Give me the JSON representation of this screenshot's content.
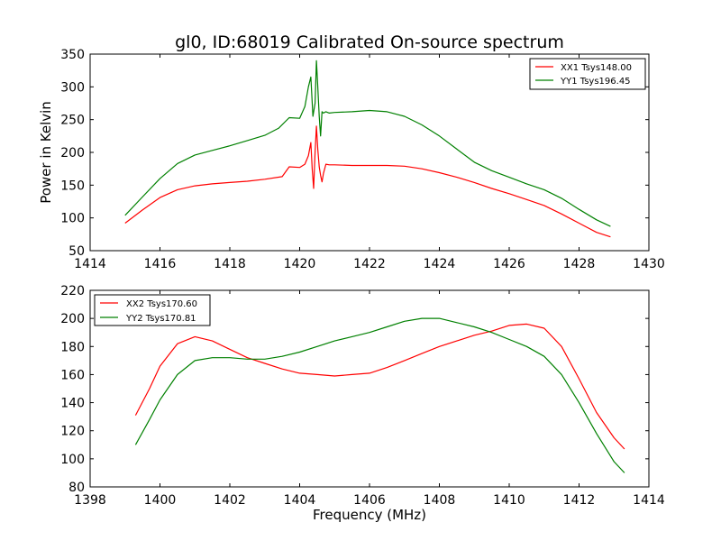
{
  "chart_data": [
    {
      "type": "line",
      "title": "gl0, ID:68019 Calibrated On-source spectrum",
      "xlabel": "",
      "ylabel": "Power in Kelvin",
      "xlim": [
        1414,
        1430
      ],
      "ylim": [
        50,
        350
      ],
      "xticks": [
        1414,
        1416,
        1418,
        1420,
        1422,
        1424,
        1426,
        1428,
        1430
      ],
      "yticks": [
        50,
        100,
        150,
        200,
        250,
        300,
        350
      ],
      "grid": false,
      "legend_position": "top-right",
      "series": [
        {
          "name": "XX1 Tsys148.00",
          "color": "#ff0000",
          "x": [
            1415.0,
            1415.5,
            1416.0,
            1416.5,
            1417.0,
            1417.5,
            1418.0,
            1418.5,
            1419.0,
            1419.5,
            1419.7,
            1420.0,
            1420.15,
            1420.25,
            1420.32,
            1420.36,
            1420.4,
            1420.44,
            1420.48,
            1420.52,
            1420.56,
            1420.6,
            1420.64,
            1420.68,
            1420.75,
            1420.85,
            1421.0,
            1421.5,
            1422.0,
            1422.5,
            1423.0,
            1423.5,
            1424.0,
            1424.5,
            1425.0,
            1425.5,
            1426.0,
            1426.5,
            1427.0,
            1427.5,
            1428.0,
            1428.5,
            1428.9
          ],
          "y": [
            92,
            112,
            131,
            143,
            149,
            152,
            154,
            156,
            159,
            163,
            178,
            177,
            182,
            195,
            215,
            175,
            145,
            200,
            240,
            205,
            178,
            165,
            155,
            168,
            182,
            181,
            181,
            180,
            180,
            180,
            179,
            175,
            169,
            162,
            154,
            145,
            137,
            128,
            119,
            106,
            92,
            78,
            71
          ]
        },
        {
          "name": "YY1 Tsys196.45",
          "color": "#008000",
          "x": [
            1415.0,
            1415.5,
            1416.0,
            1416.5,
            1417.0,
            1417.5,
            1418.0,
            1418.5,
            1419.0,
            1419.4,
            1419.7,
            1420.0,
            1420.15,
            1420.25,
            1420.32,
            1420.38,
            1420.44,
            1420.48,
            1420.52,
            1420.56,
            1420.6,
            1420.64,
            1420.68,
            1420.75,
            1420.85,
            1421.0,
            1421.5,
            1422.0,
            1422.5,
            1423.0,
            1423.5,
            1424.0,
            1424.5,
            1425.0,
            1425.5,
            1426.0,
            1426.5,
            1427.0,
            1427.5,
            1428.0,
            1428.5,
            1428.9
          ],
          "y": [
            104,
            132,
            160,
            183,
            196,
            203,
            210,
            218,
            226,
            237,
            253,
            252,
            270,
            300,
            315,
            255,
            275,
            340,
            300,
            255,
            225,
            262,
            260,
            262,
            260,
            261,
            262,
            264,
            262,
            255,
            242,
            225,
            205,
            185,
            172,
            162,
            152,
            143,
            130,
            113,
            97,
            87
          ]
        }
      ]
    },
    {
      "type": "line",
      "title": "",
      "xlabel": "Frequency (MHz)",
      "ylabel": "",
      "xlim": [
        1398,
        1414
      ],
      "ylim": [
        80,
        220
      ],
      "xticks": [
        1398,
        1400,
        1402,
        1404,
        1406,
        1408,
        1410,
        1412,
        1414
      ],
      "yticks": [
        80,
        100,
        120,
        140,
        160,
        180,
        200,
        220
      ],
      "grid": false,
      "legend_position": "top-left",
      "series": [
        {
          "name": "XX2 Tsys170.60",
          "color": "#ff0000",
          "x": [
            1399.3,
            1399.7,
            1400.0,
            1400.5,
            1401.0,
            1401.5,
            1402.0,
            1402.5,
            1403.0,
            1403.5,
            1404.0,
            1404.5,
            1405.0,
            1405.5,
            1406.0,
            1406.5,
            1407.0,
            1407.5,
            1408.0,
            1408.5,
            1409.0,
            1409.5,
            1410.0,
            1410.5,
            1411.0,
            1411.5,
            1412.0,
            1412.5,
            1413.0,
            1413.3
          ],
          "y": [
            131,
            150,
            166,
            182,
            187,
            184,
            178,
            172,
            168,
            164,
            161,
            160,
            159,
            160,
            161,
            165,
            170,
            175,
            180,
            184,
            188,
            191,
            195,
            196,
            193,
            180,
            157,
            133,
            115,
            107
          ]
        },
        {
          "name": "YY2 Tsys170.81",
          "color": "#008000",
          "x": [
            1399.3,
            1399.7,
            1400.0,
            1400.5,
            1401.0,
            1401.5,
            1402.0,
            1402.5,
            1403.0,
            1403.5,
            1404.0,
            1404.5,
            1405.0,
            1405.5,
            1406.0,
            1406.5,
            1407.0,
            1407.5,
            1408.0,
            1408.5,
            1409.0,
            1409.5,
            1410.0,
            1410.5,
            1411.0,
            1411.5,
            1412.0,
            1412.5,
            1413.0,
            1413.3
          ],
          "y": [
            110,
            128,
            142,
            160,
            170,
            172,
            172,
            171,
            171,
            173,
            176,
            180,
            184,
            187,
            190,
            194,
            198,
            200,
            200,
            197,
            194,
            190,
            185,
            180,
            173,
            160,
            140,
            118,
            98,
            90
          ]
        }
      ]
    }
  ]
}
